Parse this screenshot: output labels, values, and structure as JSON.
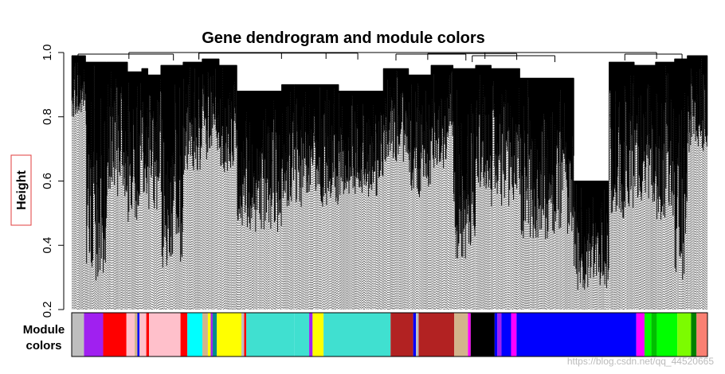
{
  "chart_data": {
    "type": "dendrogram",
    "title": "Gene dendrogram and module colors",
    "ylabel": "Height",
    "ylim": [
      0.2,
      1.0
    ],
    "yticks": [
      "0.2",
      "0.4",
      "0.6",
      "0.8",
      "1.0"
    ],
    "module_colors_label_line1": "Module",
    "module_colors_label_line2": "colors",
    "clusters": [
      {
        "x0": 0.0,
        "x1": 0.022,
        "top": 0.99,
        "bottom": 0.8,
        "module": "darkgrey"
      },
      {
        "x0": 0.022,
        "x1": 0.055,
        "top": 0.97,
        "bottom": 0.28,
        "module": "purple"
      },
      {
        "x0": 0.055,
        "x1": 0.088,
        "top": 0.97,
        "bottom": 0.55,
        "module": "red"
      },
      {
        "x0": 0.088,
        "x1": 0.11,
        "top": 0.94,
        "bottom": 0.46,
        "module": "pink"
      },
      {
        "x0": 0.11,
        "x1": 0.12,
        "top": 0.95,
        "bottom": 0.56,
        "module": "tan"
      },
      {
        "x0": 0.12,
        "x1": 0.14,
        "top": 0.93,
        "bottom": 0.5,
        "module": "pink"
      },
      {
        "x0": 0.14,
        "x1": 0.175,
        "top": 0.96,
        "bottom": 0.33,
        "module": "pink"
      },
      {
        "x0": 0.175,
        "x1": 0.205,
        "top": 0.97,
        "bottom": 0.62,
        "module": "cyan"
      },
      {
        "x0": 0.205,
        "x1": 0.232,
        "top": 0.98,
        "bottom": 0.66,
        "module": "yellow"
      },
      {
        "x0": 0.232,
        "x1": 0.26,
        "top": 0.96,
        "bottom": 0.62,
        "module": "yellow"
      },
      {
        "x0": 0.26,
        "x1": 0.33,
        "top": 0.88,
        "bottom": 0.44,
        "module": "turquoise"
      },
      {
        "x0": 0.33,
        "x1": 0.42,
        "top": 0.9,
        "bottom": 0.52,
        "module": "turquoise"
      },
      {
        "x0": 0.42,
        "x1": 0.49,
        "top": 0.88,
        "bottom": 0.55,
        "module": "turquoise"
      },
      {
        "x0": 0.49,
        "x1": 0.53,
        "top": 0.95,
        "bottom": 0.66,
        "module": "firebrick"
      },
      {
        "x0": 0.53,
        "x1": 0.565,
        "top": 0.93,
        "bottom": 0.55,
        "module": "firebrick"
      },
      {
        "x0": 0.565,
        "x1": 0.6,
        "top": 0.96,
        "bottom": 0.64,
        "module": "firebrick"
      },
      {
        "x0": 0.6,
        "x1": 0.635,
        "top": 0.95,
        "bottom": 0.34,
        "module": "black"
      },
      {
        "x0": 0.635,
        "x1": 0.66,
        "top": 0.96,
        "bottom": 0.56,
        "module": "blue"
      },
      {
        "x0": 0.66,
        "x1": 0.705,
        "top": 0.95,
        "bottom": 0.52,
        "module": "blue"
      },
      {
        "x0": 0.705,
        "x1": 0.79,
        "top": 0.92,
        "bottom": 0.42,
        "module": "blue"
      },
      {
        "x0": 0.79,
        "x1": 0.845,
        "top": 0.6,
        "bottom": 0.26,
        "module": "blue"
      },
      {
        "x0": 0.845,
        "x1": 0.885,
        "top": 0.97,
        "bottom": 0.48,
        "module": "green"
      },
      {
        "x0": 0.885,
        "x1": 0.918,
        "top": 0.96,
        "bottom": 0.52,
        "module": "green"
      },
      {
        "x0": 0.918,
        "x1": 0.948,
        "top": 0.97,
        "bottom": 0.48,
        "module": "lawngreen"
      },
      {
        "x0": 0.948,
        "x1": 0.968,
        "top": 0.98,
        "bottom": 0.29,
        "module": "lawngreen"
      },
      {
        "x0": 0.968,
        "x1": 1.0,
        "top": 0.99,
        "bottom": 0.69,
        "module": "salmon"
      }
    ],
    "top_merges": [
      {
        "x0": 0.01,
        "x1": 0.16,
        "height": 0.995
      },
      {
        "x0": 0.2,
        "x1": 0.45,
        "height": 0.998
      },
      {
        "x0": 0.09,
        "x1": 0.33,
        "height": 1.0
      },
      {
        "x0": 0.51,
        "x1": 0.62,
        "height": 0.995
      },
      {
        "x0": 0.63,
        "x1": 0.76,
        "height": 0.99
      },
      {
        "x0": 0.56,
        "x1": 0.7,
        "height": 0.997
      },
      {
        "x0": 0.87,
        "x1": 0.96,
        "height": 0.995
      },
      {
        "x0": 0.2,
        "x1": 0.65,
        "height": 1.0
      },
      {
        "x0": 0.4,
        "x1": 0.92,
        "height": 1.0
      }
    ],
    "module_bar": [
      {
        "color": "#bebebe",
        "width": 0.018
      },
      {
        "color": "#a020f0",
        "width": 0.028
      },
      {
        "color": "#ff0000",
        "width": 0.034
      },
      {
        "color": "#ffc0cb",
        "width": 0.012
      },
      {
        "color": "#d2b48c",
        "width": 0.004
      },
      {
        "color": "#0000ff",
        "width": 0.003
      },
      {
        "color": "#ffc0cb",
        "width": 0.01
      },
      {
        "color": "#ff0000",
        "width": 0.004
      },
      {
        "color": "#ffc0cb",
        "width": 0.046
      },
      {
        "color": "#ff0000",
        "width": 0.01
      },
      {
        "color": "#00ffff",
        "width": 0.022
      },
      {
        "color": "#d2b48c",
        "width": 0.008
      },
      {
        "color": "#ffff00",
        "width": 0.004
      },
      {
        "color": "#a020f0",
        "width": 0.003
      },
      {
        "color": "#008b8b",
        "width": 0.006
      },
      {
        "color": "#ffff00",
        "width": 0.036
      },
      {
        "color": "#bebebe",
        "width": 0.004
      },
      {
        "color": "#ff0000",
        "width": 0.003
      },
      {
        "color": "#40e0d0",
        "width": 0.07
      },
      {
        "color": "#40e0d0",
        "width": 0.022
      },
      {
        "color": "#a020f0",
        "width": 0.005
      },
      {
        "color": "#ffff00",
        "width": 0.016
      },
      {
        "color": "#40e0d0",
        "width": 0.098
      },
      {
        "color": "#b22222",
        "width": 0.033
      },
      {
        "color": "#0000ff",
        "width": 0.004
      },
      {
        "color": "#bebebe",
        "width": 0.004
      },
      {
        "color": "#b22222",
        "width": 0.052
      },
      {
        "color": "#d2b48c",
        "width": 0.02
      },
      {
        "color": "#ff00ff",
        "width": 0.004
      },
      {
        "color": "#000000",
        "width": 0.035
      },
      {
        "color": "#0000ff",
        "width": 0.004
      },
      {
        "color": "#a020f0",
        "width": 0.006
      },
      {
        "color": "#0000ff",
        "width": 0.014
      },
      {
        "color": "#ff00ff",
        "width": 0.008
      },
      {
        "color": "#0000ff",
        "width": 0.175
      },
      {
        "color": "#ff00ff",
        "width": 0.012
      },
      {
        "color": "#00ff00",
        "width": 0.01
      },
      {
        "color": "#00c000",
        "width": 0.008
      },
      {
        "color": "#00ff00",
        "width": 0.03
      },
      {
        "color": "#7cfc00",
        "width": 0.02
      },
      {
        "color": "#008000",
        "width": 0.008
      },
      {
        "color": "#fa8072",
        "width": 0.016
      }
    ],
    "grid": false,
    "legend": "none"
  },
  "watermark": "https://blog.csdn.net/qq_44520665",
  "colors": {
    "highlight_box": "#e03c3c",
    "axis": "#000000"
  }
}
